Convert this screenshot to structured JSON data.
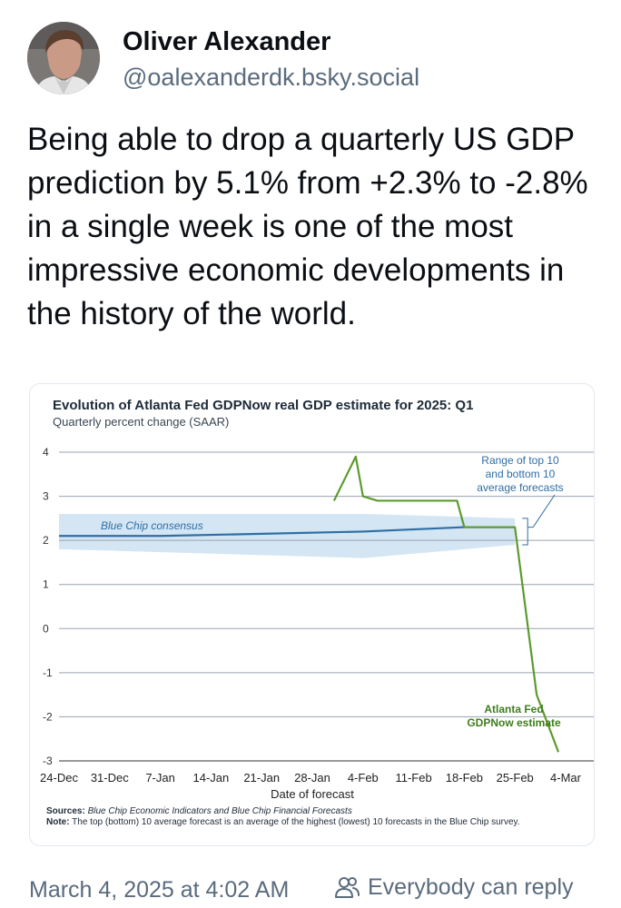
{
  "post": {
    "author_name": "Oliver Alexander",
    "author_handle": "@oalexanderdk.bsky.social",
    "text": "Being able to drop a quarterly US GDP prediction by 5.1% from +2.3% to -2.8% in a single week is one of the most impressive economic developments in the history of the world.",
    "timestamp": "March 4, 2025 at 4:02 AM",
    "reply_setting": "Everybody can reply",
    "icons": [
      "avatar",
      "people-icon"
    ]
  },
  "chart_data": {
    "type": "line",
    "title": "Evolution of Atlanta Fed GDPNow real GDP estimate for 2025: Q1",
    "subtitle": "Quarterly percent change (SAAR)",
    "xlabel": "Date of forecast",
    "ylabel": "",
    "x_ticks": [
      "24-Dec",
      "31-Dec",
      "7-Jan",
      "14-Jan",
      "21-Jan",
      "28-Jan",
      "4-Feb",
      "11-Feb",
      "18-Feb",
      "25-Feb",
      "4-Mar"
    ],
    "y_ticks": [
      "4",
      "3",
      "2",
      "1",
      "0",
      "-1",
      "-2",
      "-3"
    ],
    "ylim": [
      -3,
      4
    ],
    "grid": true,
    "series": [
      {
        "name": "Blue Chip consensus",
        "color": "#2f6ea5",
        "points": [
          [
            "24-Dec",
            2.1
          ],
          [
            "7-Jan",
            2.1
          ],
          [
            "21-Jan",
            2.15
          ],
          [
            "4-Feb",
            2.2
          ],
          [
            "18-Feb",
            2.3
          ],
          [
            "25-Feb",
            2.3
          ]
        ]
      },
      {
        "name": "Atlanta Fed GDPNow estimate",
        "color": "#5c9a2e",
        "points": [
          [
            "31-Jan",
            2.9
          ],
          [
            "3-Feb",
            3.9
          ],
          [
            "4-Feb",
            3.0
          ],
          [
            "6-Feb",
            2.9
          ],
          [
            "11-Feb",
            2.9
          ],
          [
            "17-Feb",
            2.9
          ],
          [
            "18-Feb",
            2.3
          ],
          [
            "25-Feb",
            2.3
          ],
          [
            "28-Feb",
            -1.5
          ],
          [
            "3-Mar",
            -2.8
          ]
        ]
      }
    ],
    "band": {
      "name": "Range of top 10 and bottom 10 average forecasts",
      "color": "#cfe2f2",
      "upper": [
        [
          "24-Dec",
          2.6
        ],
        [
          "4-Feb",
          2.6
        ],
        [
          "25-Feb",
          2.5
        ]
      ],
      "lower": [
        [
          "24-Dec",
          1.8
        ],
        [
          "4-Feb",
          1.6
        ],
        [
          "25-Feb",
          1.9
        ]
      ]
    },
    "annotations": {
      "range_label": [
        "Range of top 10",
        "and bottom 10",
        "average forecasts"
      ],
      "blue_chip_label": "Blue Chip consensus",
      "gdpnow_label": [
        "Atlanta Fed",
        "GDPNow estimate"
      ]
    },
    "sources_label": "Sources:",
    "sources_text": "Blue Chip Economic Indicators and Blue Chip Financial Forecasts",
    "note_label": "Note:",
    "note_text": "The top (bottom) 10 average forecast is an average of the highest (lowest) 10 forecasts in the Blue Chip survey."
  }
}
